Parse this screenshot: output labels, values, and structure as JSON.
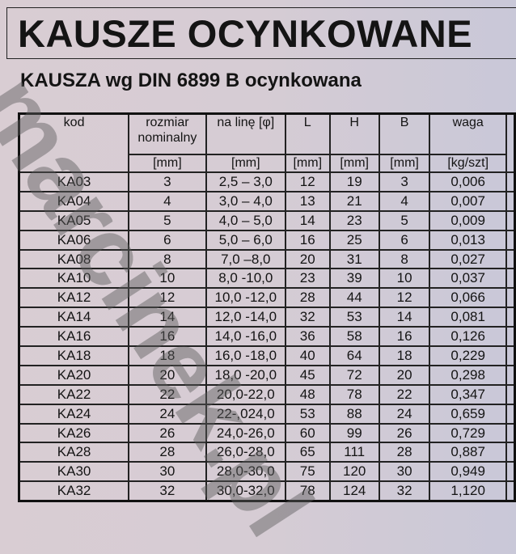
{
  "title": "KAUSZE OCYNKOWANE",
  "subtitle": "KAUSZA wg DIN 6899 B ocynkowana",
  "watermark": "marcinek.pl",
  "table": {
    "headers": [
      "kod",
      "rozmiar nominalny",
      "na linę [φ]",
      "L",
      "H",
      "B",
      "waga"
    ],
    "units": [
      "",
      "[mm]",
      "[mm]",
      "[mm]",
      "[mm]",
      "[mm]",
      "[kg/szt]"
    ],
    "rows": [
      [
        "KA03",
        "3",
        "2,5 – 3,0",
        "12",
        "19",
        "3",
        "0,006"
      ],
      [
        "KA04",
        "4",
        "3,0 – 4,0",
        "13",
        "21",
        "4",
        "0,007"
      ],
      [
        "KA05",
        "5",
        "4,0 – 5,0",
        "14",
        "23",
        "5",
        "0,009"
      ],
      [
        "KA06",
        "6",
        "5,0 – 6,0",
        "16",
        "25",
        "6",
        "0,013"
      ],
      [
        "KA08",
        "8",
        "7,0 –8,0",
        "20",
        "31",
        "8",
        "0,027"
      ],
      [
        "KA10",
        "10",
        "8,0 -10,0",
        "23",
        "39",
        "10",
        "0,037"
      ],
      [
        "KA12",
        "12",
        "10,0 -12,0",
        "28",
        "44",
        "12",
        "0,066"
      ],
      [
        "KA14",
        "14",
        "12,0 -14,0",
        "32",
        "53",
        "14",
        "0,081"
      ],
      [
        "KA16",
        "16",
        "14,0 -16,0",
        "36",
        "58",
        "16",
        "0,126"
      ],
      [
        "KA18",
        "18",
        "16,0 -18,0",
        "40",
        "64",
        "18",
        "0,229"
      ],
      [
        "KA20",
        "20",
        "18,0 -20,0",
        "45",
        "72",
        "20",
        "0,298"
      ],
      [
        "KA22",
        "22",
        "20,0-22,0",
        "48",
        "78",
        "22",
        "0,347"
      ],
      [
        "KA24",
        "24",
        "22-,024,0",
        "53",
        "88",
        "24",
        "0,659"
      ],
      [
        "KA26",
        "26",
        "24,0-26,0",
        "60",
        "99",
        "26",
        "0,729"
      ],
      [
        "KA28",
        "28",
        "26,0-28,0",
        "65",
        "111",
        "28",
        "0,887"
      ],
      [
        "KA30",
        "30",
        "28,0-30,0",
        "75",
        "120",
        "30",
        "0,949"
      ],
      [
        "KA32",
        "32",
        "30,0-32,0",
        "78",
        "124",
        "32",
        "1,120"
      ]
    ]
  }
}
